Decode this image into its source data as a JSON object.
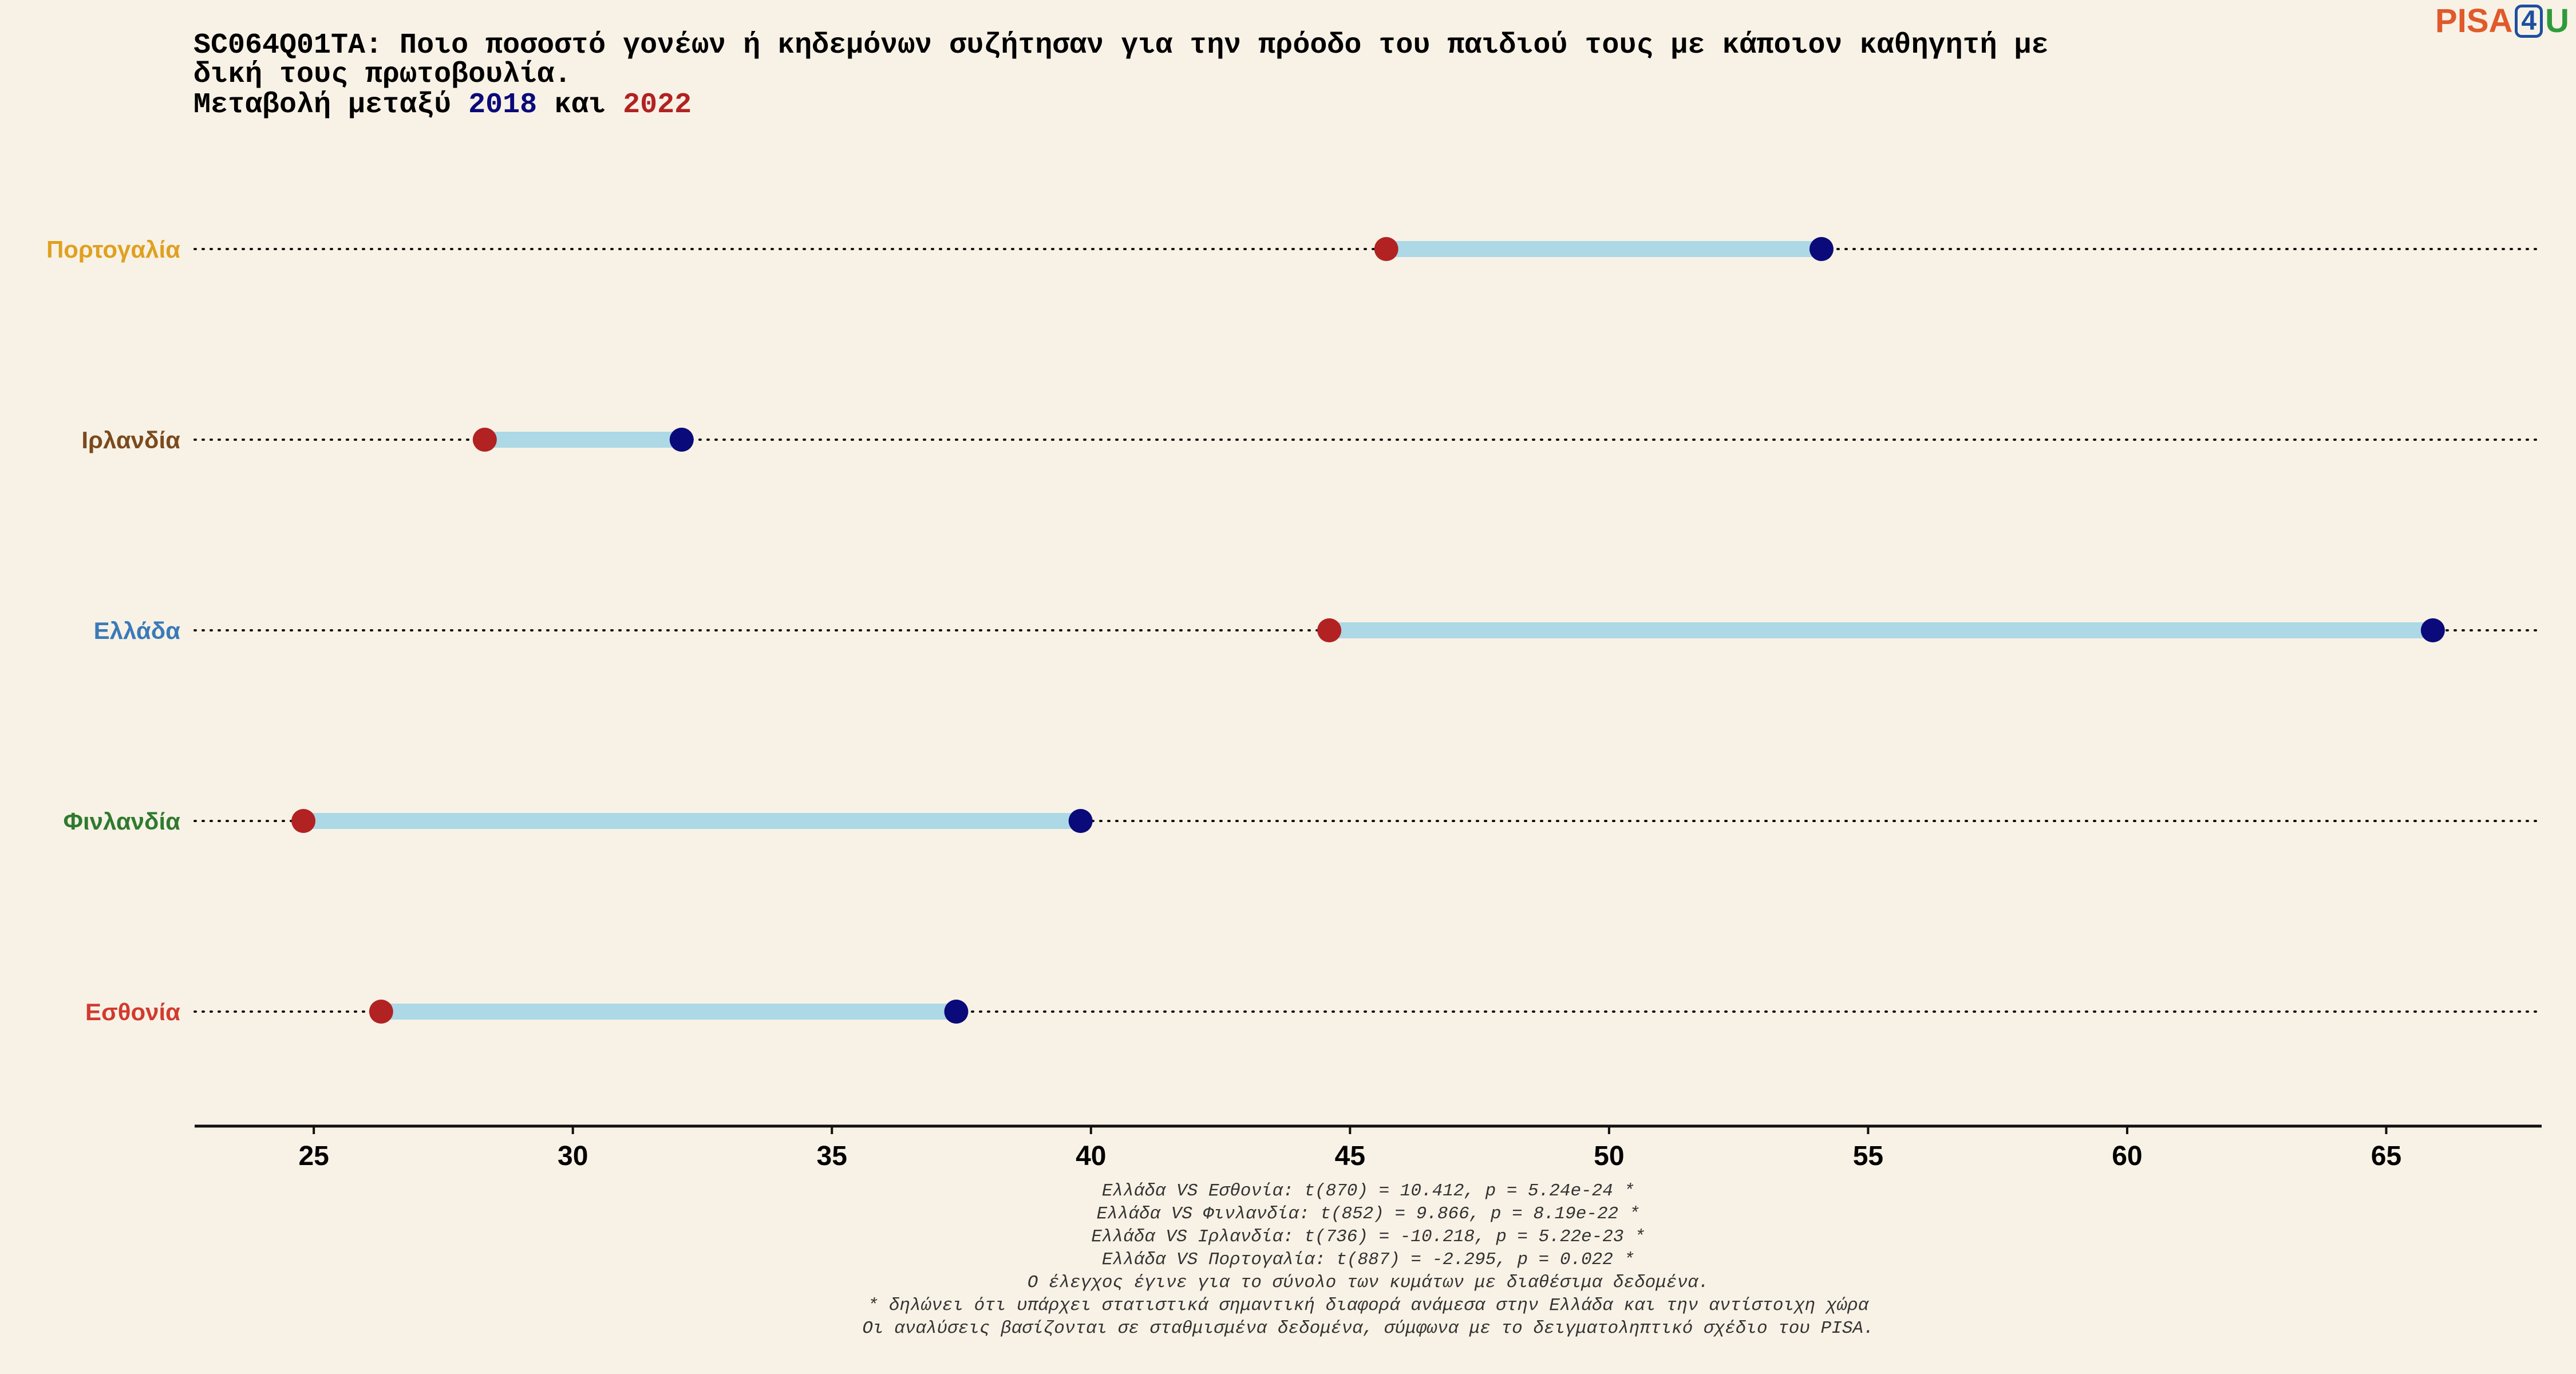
{
  "title": {
    "line1": "SC064Q01TA: Ποιο ποσοστό γονέων ή κηδεμόνων συζήτησαν για την πρόοδο του παιδιού τους με κάποιον καθηγητή με",
    "line2": "δική τους πρωτοβουλία.",
    "line3_prefix": "Μεταβολή μεταξύ ",
    "year_a": "2018",
    "line3_mid": " και ",
    "year_b": "2022"
  },
  "logo": {
    "pisa": "PISA",
    "four": "4",
    "u": "U"
  },
  "colors": {
    "background": "#f8f2e6",
    "year_2018": "#0a0a7a",
    "year_2022": "#b22222",
    "connector": "#add8e6"
  },
  "chart_data": {
    "type": "dumbbell",
    "categories": [
      "Πορτογαλία",
      "Ιρλανδία",
      "Ελλάδα",
      "Φινλανδία",
      "Εσθονία"
    ],
    "category_colors": [
      "#e0a020",
      "#7a4a1e",
      "#3a7ab8",
      "#2f7a2f",
      "#d23a2f"
    ],
    "series": [
      {
        "name": "2018",
        "values": [
          54.1,
          32.1,
          65.9,
          39.8,
          37.4
        ]
      },
      {
        "name": "2022",
        "values": [
          45.7,
          28.3,
          44.6,
          24.8,
          26.3
        ]
      }
    ],
    "xlim": [
      22.7,
      68.0
    ],
    "xticks": [
      25,
      30,
      35,
      40,
      45,
      50,
      55,
      60,
      65
    ],
    "xlabel": "",
    "ylabel": "",
    "grid": "dotted lines per category"
  },
  "footnotes": [
    "Ελλάδα VS Εσθονία: t(870) = 10.412, p = 5.24e-24 *",
    "Ελλάδα VS Φινλανδία: t(852) = 9.866, p = 8.19e-22 *",
    "Ελλάδα VS Ιρλανδία: t(736) = -10.218, p = 5.22e-23 *",
    "Ελλάδα VS Πορτογαλία: t(887) = -2.295, p = 0.022 *",
    "Ο έλεγχος έγινε για το σύνολο των κυμάτων με διαθέσιμα δεδομένα.",
    "* δηλώνει ότι υπάρχει στατιστικά σημαντική διαφορά ανάμεσα στην Ελλάδα και την αντίστοιχη χώρα",
    "Οι αναλύσεις βασίζονται σε σταθμισμένα δεδομένα, σύμφωνα με το δειγματοληπτικό σχέδιο του PISA."
  ]
}
